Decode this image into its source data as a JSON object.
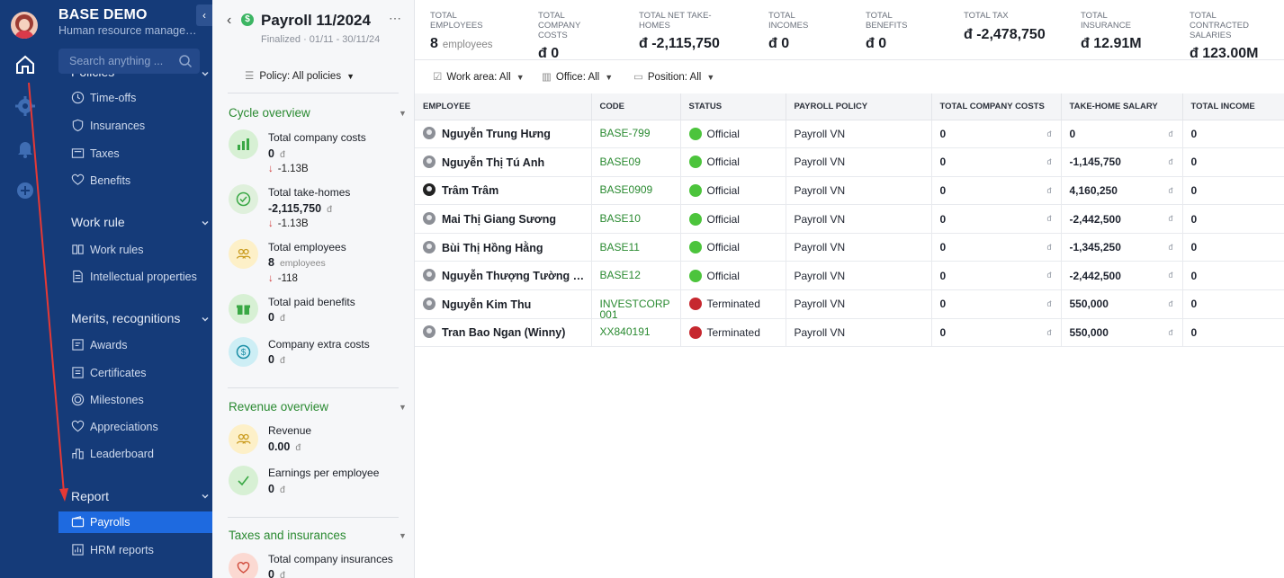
{
  "brand": {
    "title": "BASE DEMO",
    "subtitle": "Human resource manageme..."
  },
  "search": {
    "placeholder": "Search anything ..."
  },
  "sidebar": {
    "partial_group": "Policies",
    "items_policies": [
      {
        "label": "Time-offs",
        "icon": "clock-icon"
      },
      {
        "label": "Insurances",
        "icon": "shield-icon"
      },
      {
        "label": "Taxes",
        "icon": "tax-icon"
      },
      {
        "label": "Benefits",
        "icon": "heart-hand-icon"
      }
    ],
    "group_work_rule": "Work rule",
    "items_work_rule": [
      {
        "label": "Work rules",
        "icon": "book-icon"
      },
      {
        "label": "Intellectual properties",
        "icon": "document-icon"
      }
    ],
    "group_merits": "Merits, recognitions",
    "items_merits": [
      {
        "label": "Awards",
        "icon": "award-icon"
      },
      {
        "label": "Certificates",
        "icon": "certificate-icon"
      },
      {
        "label": "Milestones",
        "icon": "target-icon"
      },
      {
        "label": "Appreciations",
        "icon": "heart-icon"
      },
      {
        "label": "Leaderboard",
        "icon": "leaderboard-icon"
      }
    ],
    "group_report": "Report",
    "items_report": [
      {
        "label": "Payrolls",
        "icon": "wallet-icon",
        "active": true
      },
      {
        "label": "HRM reports",
        "icon": "report-icon"
      }
    ]
  },
  "overview": {
    "title": "Payroll 11/2024",
    "subtitle": "Finalized · 01/11 - 30/11/24",
    "policy_label": "Policy: All policies",
    "cycle_title": "Cycle overview",
    "stats": [
      {
        "label": "Total company costs",
        "value": "0",
        "unit": "đ",
        "delta": "-1.13B"
      },
      {
        "label": "Total take-homes",
        "value": "-2,115,750",
        "unit": "đ",
        "delta": "-1.13B"
      },
      {
        "label": "Total employees",
        "value": "8",
        "unit": "employees",
        "delta": "-118"
      },
      {
        "label": "Total paid benefits",
        "value": "0",
        "unit": "đ"
      },
      {
        "label": "Company extra costs",
        "value": "0",
        "unit": "đ"
      }
    ],
    "revenue_title": "Revenue overview",
    "revenue_stats": [
      {
        "label": "Revenue",
        "value": "0.00",
        "unit": "đ"
      },
      {
        "label": "Earnings per employee",
        "value": "0",
        "unit": "đ"
      }
    ],
    "taxes_title": "Taxes and insurances",
    "taxes_stats": [
      {
        "label": "Total company insurances",
        "value": "0",
        "unit": "đ"
      }
    ]
  },
  "kpis": [
    {
      "label_lines": [
        "TOTAL",
        "EMPLOYEES"
      ],
      "value": "8",
      "unit": "employees"
    },
    {
      "label_lines": [
        "TOTAL",
        "COMPANY",
        "COSTS"
      ],
      "value": "đ 0"
    },
    {
      "label_lines": [
        "TOTAL NET TAKE-",
        "HOMES"
      ],
      "value": "đ -2,115,750"
    },
    {
      "label_lines": [
        "TOTAL",
        "INCOMES"
      ],
      "value": "đ 0"
    },
    {
      "label_lines": [
        "TOTAL",
        "BENEFITS"
      ],
      "value": "đ 0"
    },
    {
      "label_lines": [
        "TOTAL TAX"
      ],
      "value": "đ -2,478,750"
    },
    {
      "label_lines": [
        "TOTAL",
        "INSURANCE"
      ],
      "value": "đ 12.91M"
    },
    {
      "label_lines": [
        "TOTAL",
        "CONTRACTED",
        "SALARIES"
      ],
      "value": "đ 123.00M"
    }
  ],
  "filters": {
    "work_area": "Work area: All",
    "office": "Office: All",
    "position": "Position: All"
  },
  "table": {
    "headers": [
      "EMPLOYEE",
      "CODE",
      "STATUS",
      "PAYROLL POLICY",
      "TOTAL COMPANY COSTS",
      "TAKE-HOME SALARY",
      "TOTAL INCOME"
    ],
    "currency": "đ",
    "rows": [
      {
        "employee": "Nguyễn Trung Hưng",
        "code": "BASE-799",
        "status": "Official",
        "policy": "Payroll VN",
        "company_costs": "0",
        "take_home": "0",
        "income": "0"
      },
      {
        "employee": "Nguyễn Thị Tú Anh",
        "code": "BASE09",
        "status": "Official",
        "policy": "Payroll VN",
        "company_costs": "0",
        "take_home": "-1,145,750",
        "income": "0"
      },
      {
        "employee": "Trâm Trâm",
        "code": "BASE0909",
        "status": "Official",
        "policy": "Payroll VN",
        "company_costs": "0",
        "take_home": "4,160,250",
        "income": "0"
      },
      {
        "employee": "Mai Thị Giang Sương",
        "code": "BASE10",
        "status": "Official",
        "policy": "Payroll VN",
        "company_costs": "0",
        "take_home": "-2,442,500",
        "income": "0"
      },
      {
        "employee": "Bùi Thị Hồng Hằng",
        "code": "BASE11",
        "status": "Official",
        "policy": "Payroll VN",
        "company_costs": "0",
        "take_home": "-1,345,250",
        "income": "0"
      },
      {
        "employee": "Nguyễn Thượng Tường Mi...",
        "code": "BASE12",
        "status": "Official",
        "policy": "Payroll VN",
        "company_costs": "0",
        "take_home": "-2,442,500",
        "income": "0"
      },
      {
        "employee": "Nguyễn Kim Thu",
        "code": "INVESTCORP001",
        "status": "Terminated",
        "policy": "Payroll VN",
        "company_costs": "0",
        "take_home": "550,000",
        "income": "0"
      },
      {
        "employee": "Tran Bao Ngan (Winny)",
        "code": "XX840191",
        "status": "Terminated",
        "policy": "Payroll VN",
        "company_costs": "0",
        "take_home": "550,000",
        "income": "0"
      }
    ]
  },
  "colors": {
    "sidebar_bg": "#153b79",
    "active_item": "#1e6ae0",
    "accent_green": "#2a8a31",
    "status_official": "#4cc43c",
    "status_terminated": "#c6282f",
    "annotation_arrow": "#e53935"
  }
}
